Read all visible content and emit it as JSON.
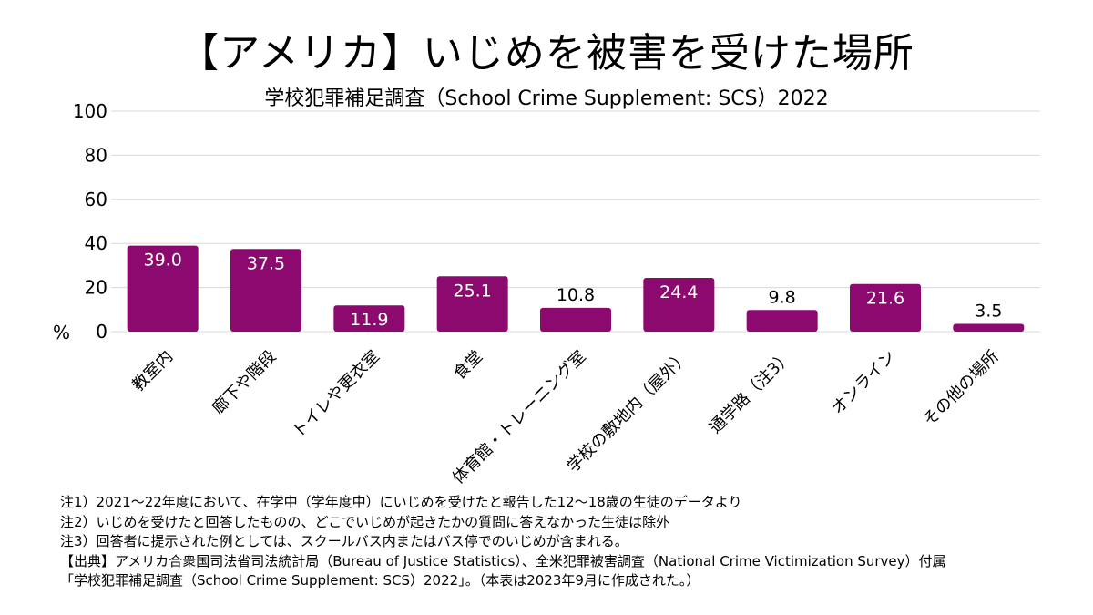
{
  "chart_data": {
    "type": "bar",
    "title": "【アメリカ】いじめを被害を受けた場所",
    "subtitle": "学校犯罪補足調査（School Crime Supplement: SCS）2022",
    "ylabel": "%",
    "xlabel": "",
    "ylim": [
      0,
      100
    ],
    "yticks": [
      "0",
      "20",
      "40",
      "60",
      "80",
      "100"
    ],
    "grid": true,
    "categories": [
      "教室内",
      "廊下や階段",
      "トイレや更衣室",
      "食堂",
      "体育館・トレーニング室",
      "学校の敷地内（屋外）",
      "通学路（注3）",
      "オンライン",
      "その他の場所"
    ],
    "values": [
      39.0,
      37.5,
      11.9,
      25.1,
      10.8,
      24.4,
      9.8,
      21.6,
      3.5
    ],
    "value_labels": [
      "39.0",
      "37.5",
      "11.9",
      "25.1",
      "10.8",
      "24.4",
      "9.8",
      "21.6",
      "3.5"
    ],
    "bar_color": "#8c0a6f",
    "grid_color": "#d9d9d9"
  },
  "notes": [
    "注1）2021～22年度において、在学中（学年度中）にいじめを受けたと報告した12～18歳の生徒のデータより",
    "注2）いじめを受けたと回答したものの、どこでいじめが起きたかの質問に答えなかった生徒は除外",
    "注3）回答者に提示された例としては、スクールバス内またはバス停でのいじめが含まれる。",
    "【出典】アメリカ合衆国司法省司法統計局（Bureau of Justice Statistics）、全米犯罪被害調査（National Crime Victimization Survey）付属",
    "「学校犯罪補足調査（School Crime Supplement: SCS）2022」。（本表は2023年9月に作成された。）"
  ]
}
